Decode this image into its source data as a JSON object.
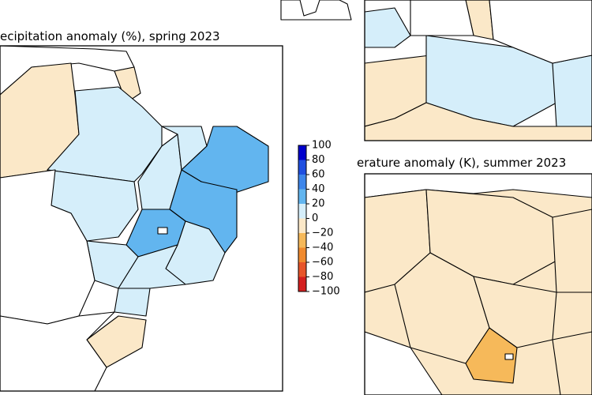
{
  "panels": [
    {
      "title": "ecipitation anomaly (%), spring 2023"
    },
    {
      "title": "erature anomaly (K), summer 2023"
    }
  ],
  "colorbar": {
    "ticks": [
      100,
      80,
      60,
      40,
      20,
      0,
      {
        "value": -20,
        "label": "−20"
      },
      {
        "value": -40,
        "label": "−40"
      },
      {
        "value": -60,
        "label": "−60"
      },
      {
        "value": -80,
        "label": "−80"
      },
      {
        "value": -100,
        "label": "−100"
      }
    ],
    "colors": [
      "#0000cc",
      "#1f4fe0",
      "#3d86ea",
      "#62b5ef",
      "#d5eefa",
      "#fbe8c8",
      "#f6b95a",
      "#f08a2e",
      "#e7552a",
      "#d41f1f"
    ]
  }
}
